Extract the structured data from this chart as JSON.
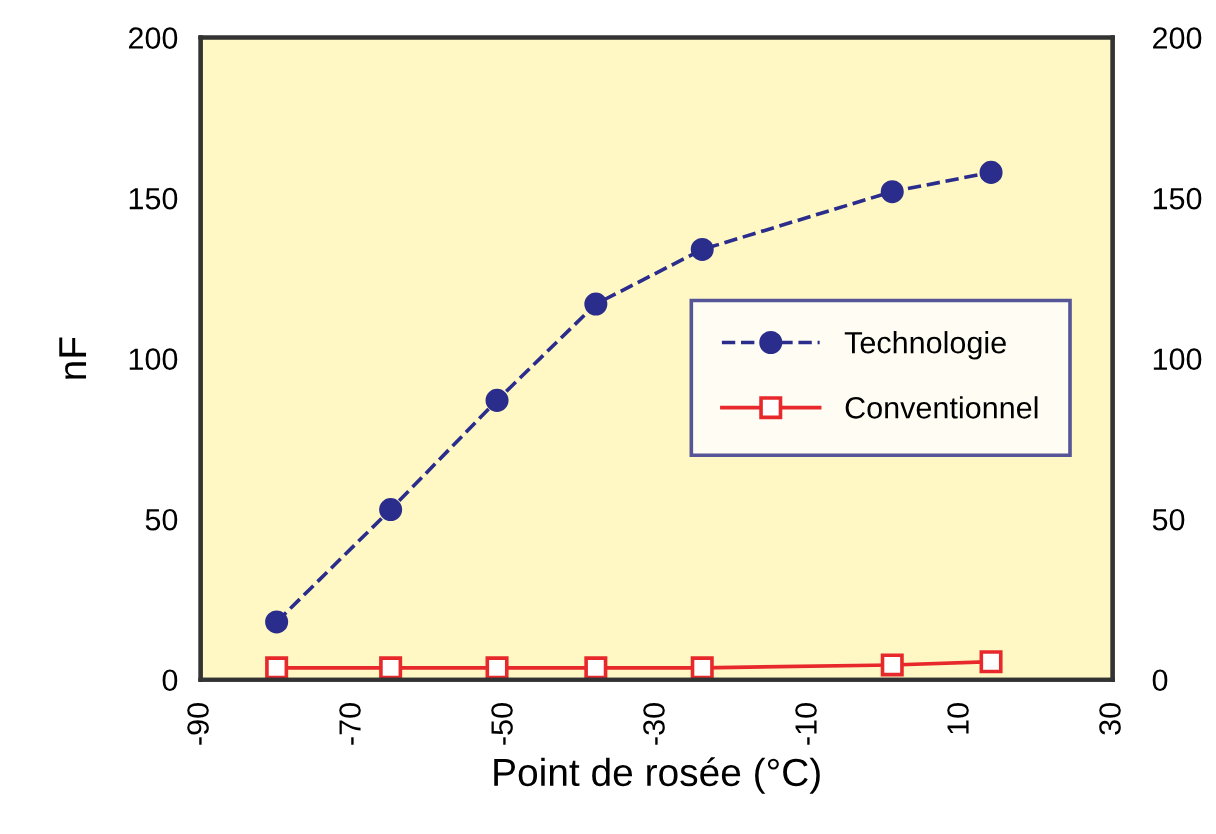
{
  "chart_data": {
    "type": "line",
    "xlabel": "Point de rosée (°C)",
    "ylabel": "nF",
    "xlim": [
      -90,
      30
    ],
    "xticks": [
      -90,
      -70,
      -50,
      -30,
      -10,
      10,
      30
    ],
    "ylim": [
      0,
      200
    ],
    "yticks": [
      0,
      50,
      100,
      150,
      200
    ],
    "y2lim": [
      0,
      200
    ],
    "y2ticks": [
      0,
      50,
      100,
      150,
      200
    ],
    "grid": false,
    "legend": "right",
    "series": [
      {
        "name": "Technologie",
        "color": "#2b2d8c",
        "marker": "circle",
        "line_style": "dashed",
        "x": [
          -80,
          -65,
          -51,
          -38,
          -24,
          1,
          14
        ],
        "values": [
          18,
          53,
          87,
          117,
          134,
          152,
          158
        ]
      },
      {
        "name": "Conventionnel",
        "color": "#e8292b",
        "marker": "square",
        "line_style": "solid",
        "x": [
          -80,
          -65,
          -51,
          -38,
          -24,
          1,
          14
        ],
        "values": [
          3.7,
          3.7,
          3.7,
          3.7,
          3.7,
          4.6,
          5.6
        ]
      }
    ]
  }
}
